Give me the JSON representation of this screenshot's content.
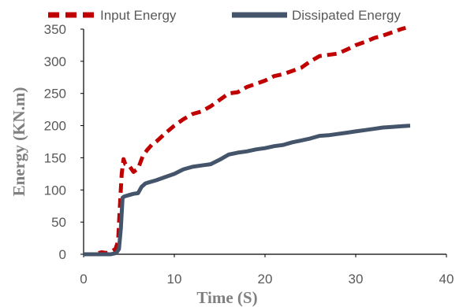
{
  "chart_data": {
    "type": "line",
    "title": "",
    "xlabel": "Time (S)",
    "ylabel": "Energy (KN.m)",
    "xlim": [
      0,
      40
    ],
    "ylim": [
      0,
      350
    ],
    "x_ticks": [
      0,
      10,
      20,
      30,
      40
    ],
    "y_ticks": [
      0,
      50,
      100,
      150,
      200,
      250,
      300,
      350
    ],
    "grid": false,
    "legend": "top",
    "series": [
      {
        "name": "Input Energy",
        "color": "#c00000",
        "style": "dashed",
        "x": [
          0,
          1,
          2,
          2.5,
          3,
          3.5,
          3.8,
          4,
          4.2,
          4.4,
          4.6,
          5,
          5.5,
          6,
          6.5,
          7,
          7.5,
          8,
          9,
          10,
          11,
          12,
          13,
          14,
          15,
          16,
          17,
          18,
          19,
          20,
          21,
          22,
          23,
          24,
          25,
          26,
          27,
          28,
          29,
          30,
          31,
          32,
          33,
          34,
          35,
          35.5
        ],
        "y": [
          0,
          0,
          3,
          2,
          4,
          8,
          20,
          75,
          125,
          148,
          140,
          138,
          128,
          133,
          152,
          162,
          170,
          175,
          188,
          200,
          210,
          218,
          222,
          230,
          240,
          250,
          252,
          260,
          265,
          270,
          277,
          280,
          285,
          290,
          300,
          308,
          310,
          312,
          318,
          325,
          330,
          336,
          340,
          345,
          350,
          352
        ]
      },
      {
        "name": "Dissipated Energy",
        "color": "#44546a",
        "style": "solid",
        "x": [
          0,
          1,
          2,
          3,
          3.6,
          3.9,
          4.1,
          4.3,
          4.5,
          5,
          5.5,
          6,
          6.4,
          6.8,
          7,
          8,
          9,
          10,
          11,
          12,
          13,
          14,
          15,
          16,
          17,
          18,
          19,
          20,
          21,
          22,
          23,
          24,
          25,
          26,
          27,
          28,
          29,
          30,
          31,
          32,
          33,
          34,
          35,
          36
        ],
        "y": [
          0,
          0,
          0,
          0,
          2,
          8,
          40,
          88,
          90,
          92,
          94,
          95,
          105,
          110,
          111,
          115,
          120,
          125,
          132,
          136,
          138,
          140,
          147,
          155,
          158,
          160,
          163,
          165,
          168,
          170,
          174,
          177,
          180,
          184,
          185,
          187,
          189,
          191,
          193,
          195,
          197,
          198,
          199,
          200
        ]
      }
    ]
  }
}
